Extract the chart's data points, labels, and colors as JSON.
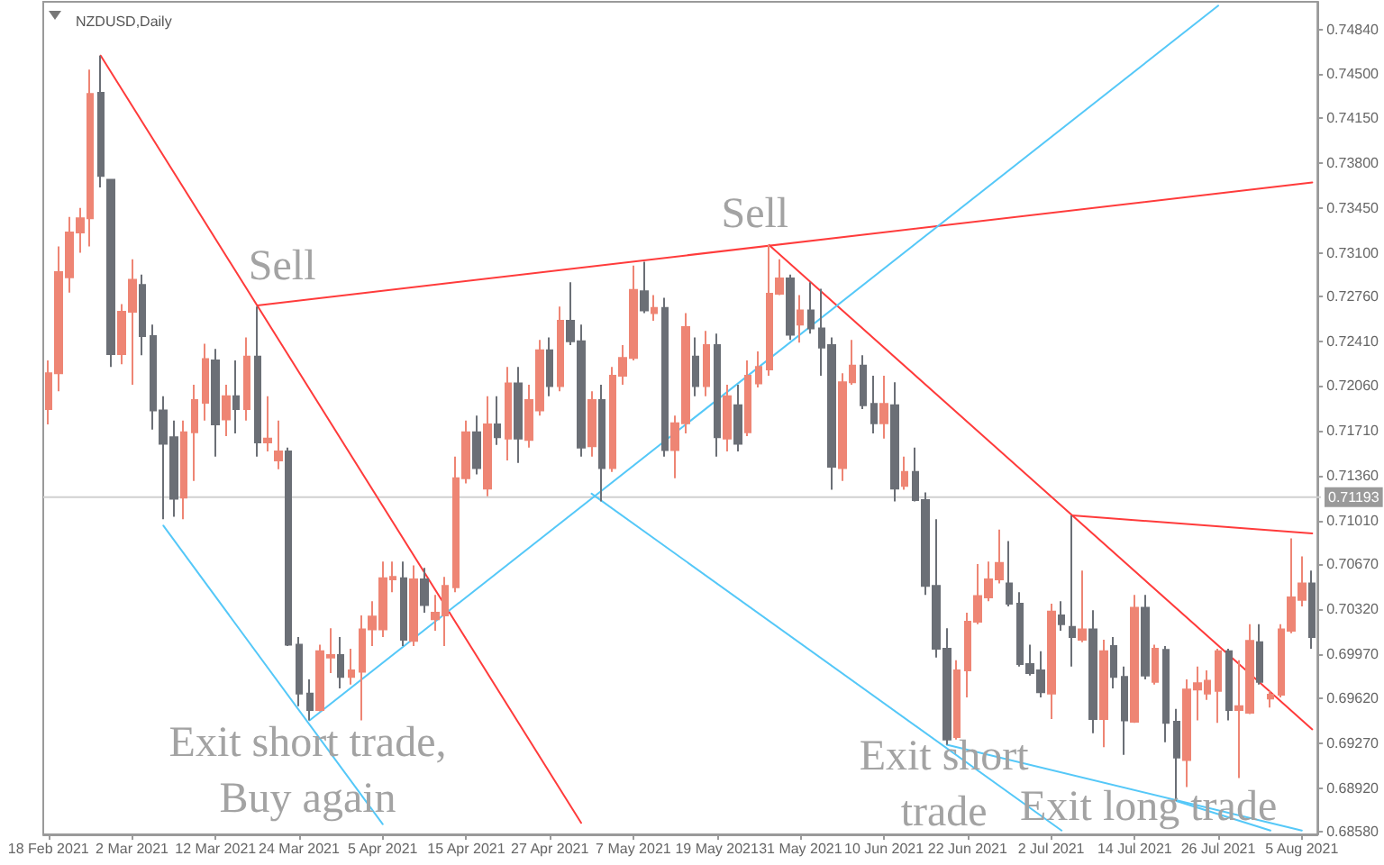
{
  "chart_data": {
    "type": "candlestick",
    "title": "NZDUSD,Daily",
    "categories": [
      "18 Feb 2021",
      null,
      null,
      null,
      null,
      null,
      null,
      null,
      "2 Mar 2021",
      null,
      null,
      null,
      null,
      null,
      null,
      null,
      "12 Mar 2021",
      null,
      null,
      null,
      null,
      null,
      null,
      null,
      "24 Mar 2021",
      null,
      null,
      null,
      null,
      null,
      null,
      null,
      "5 Apr 2021",
      null,
      null,
      null,
      null,
      null,
      null,
      null,
      "15 Apr 2021",
      null,
      null,
      null,
      null,
      null,
      null,
      null,
      "27 Apr 2021",
      null,
      null,
      null,
      null,
      null,
      null,
      null,
      "7 May 2021",
      null,
      null,
      null,
      null,
      null,
      null,
      null,
      "19 May 2021",
      null,
      null,
      null,
      null,
      null,
      null,
      null,
      "31 May 2021",
      null,
      null,
      null,
      null,
      null,
      null,
      null,
      "10 Jun 2021",
      null,
      null,
      null,
      null,
      null,
      null,
      null,
      "22 Jun 2021",
      null,
      null,
      null,
      null,
      null,
      null,
      null,
      "2 Jul 2021",
      null,
      null,
      null,
      null,
      null,
      null,
      null,
      "14 Jul 2021",
      null,
      null,
      null,
      null,
      null,
      null,
      null,
      "26 Jul 2021",
      null,
      null,
      null,
      null,
      null,
      null,
      null,
      "5 Aug 2021",
      null
    ],
    "ylim": [
      0.6856,
      0.7506
    ],
    "yticks": [
      {
        "value": 0.7484,
        "label": "0.74840"
      },
      {
        "value": 0.745,
        "label": "0.74500"
      },
      {
        "value": 0.7415,
        "label": "0.74150"
      },
      {
        "value": 0.738,
        "label": "0.73800"
      },
      {
        "value": 0.7345,
        "label": "0.73450"
      },
      {
        "value": 0.731,
        "label": "0.73100"
      },
      {
        "value": 0.7276,
        "label": "0.72760"
      },
      {
        "value": 0.7241,
        "label": "0.72410"
      },
      {
        "value": 0.7206,
        "label": "0.72060"
      },
      {
        "value": 0.7171,
        "label": "0.71710"
      },
      {
        "value": 0.7136,
        "label": "0.71360"
      },
      {
        "value": 0.7101,
        "label": "0.71010"
      },
      {
        "value": 0.7067,
        "label": "0.70670"
      },
      {
        "value": 0.7032,
        "label": "0.70320"
      },
      {
        "value": 0.6997,
        "label": "0.69970"
      },
      {
        "value": 0.6962,
        "label": "0.69620"
      },
      {
        "value": 0.6927,
        "label": "0.69270"
      },
      {
        "value": 0.6892,
        "label": "0.68920"
      },
      {
        "value": 0.6858,
        "label": "0.68580"
      }
    ],
    "marker": "none",
    "ref_lines": [
      {
        "axis": "y",
        "value": 0.71193,
        "label": "0.71193",
        "color": "#d0d0d0"
      }
    ],
    "annotations": [
      "Sell",
      "Sell",
      "Exit short trade,\nBuy again",
      "Exit short\ntrade",
      "Exit long trade"
    ],
    "series": [
      {
        "ohlc": [
          [
            0.7188,
            0.7226,
            0.7176,
            0.7216
          ],
          [
            0.7216,
            0.7315,
            0.7202,
            0.7295
          ],
          [
            0.7291,
            0.7338,
            0.7279,
            0.7326
          ],
          [
            0.7326,
            0.7345,
            0.731,
            0.7337
          ],
          [
            0.7337,
            0.7453,
            0.7315,
            0.7434
          ],
          [
            0.7435,
            0.7464,
            0.7361,
            0.737
          ],
          [
            0.7367,
            0.7367,
            0.7221,
            0.7231
          ],
          [
            0.7231,
            0.727,
            0.7223,
            0.7264
          ],
          [
            0.7264,
            0.7305,
            0.7207,
            0.7289
          ],
          [
            0.7285,
            0.7293,
            0.723,
            0.7245
          ],
          [
            0.7245,
            0.7254,
            0.7172,
            0.7187
          ],
          [
            0.7187,
            0.7198,
            0.7102,
            0.7161
          ],
          [
            0.7166,
            0.7179,
            0.7104,
            0.7118
          ],
          [
            0.7119,
            0.7179,
            0.7102,
            0.717
          ],
          [
            0.717,
            0.7207,
            0.7132,
            0.7195
          ],
          [
            0.7193,
            0.7239,
            0.7179,
            0.7227
          ],
          [
            0.7226,
            0.7235,
            0.7151,
            0.7176
          ],
          [
            0.718,
            0.7207,
            0.7167,
            0.7198
          ],
          [
            0.7198,
            0.7226,
            0.7169,
            0.7188
          ],
          [
            0.7188,
            0.7244,
            0.7179,
            0.7229
          ],
          [
            0.7229,
            0.7268,
            0.7151,
            0.7162
          ],
          [
            0.7162,
            0.7198,
            0.7155,
            0.7165
          ],
          [
            0.7148,
            0.7179,
            0.7141,
            0.7155
          ],
          [
            0.7155,
            0.7158,
            0.7003,
            0.7004
          ],
          [
            0.7004,
            0.701,
            0.6956,
            0.6966
          ],
          [
            0.6966,
            0.6977,
            0.6945,
            0.6953
          ],
          [
            0.6953,
            0.7004,
            0.6952,
            0.6999
          ],
          [
            0.6994,
            0.7017,
            0.6982,
            0.6996
          ],
          [
            0.6996,
            0.701,
            0.697,
            0.6979
          ],
          [
            0.6979,
            0.7001,
            0.6973,
            0.6984
          ],
          [
            0.6983,
            0.7027,
            0.6945,
            0.7016
          ],
          [
            0.7016,
            0.7038,
            0.7003,
            0.7026
          ],
          [
            0.7016,
            0.7069,
            0.701,
            0.7056
          ],
          [
            0.7055,
            0.7069,
            0.7045,
            0.7057
          ],
          [
            0.7056,
            0.7069,
            0.7003,
            0.7008
          ],
          [
            0.7007,
            0.7066,
            0.7003,
            0.7055
          ],
          [
            0.7055,
            0.7064,
            0.7029,
            0.7035
          ],
          [
            0.7024,
            0.7043,
            0.7015,
            0.7029
          ],
          [
            0.7027,
            0.7057,
            0.7003,
            0.705
          ],
          [
            0.7049,
            0.7151,
            0.7045,
            0.7134
          ],
          [
            0.7134,
            0.7179,
            0.713,
            0.717
          ],
          [
            0.717,
            0.7183,
            0.7137,
            0.7142
          ],
          [
            0.7126,
            0.7198,
            0.712,
            0.7176
          ],
          [
            0.7176,
            0.7198,
            0.716,
            0.7166
          ],
          [
            0.7165,
            0.7221,
            0.7148,
            0.7208
          ],
          [
            0.7208,
            0.7221,
            0.7146,
            0.7165
          ],
          [
            0.7164,
            0.7207,
            0.7158,
            0.7195
          ],
          [
            0.7187,
            0.7242,
            0.7183,
            0.7234
          ],
          [
            0.7234,
            0.7244,
            0.7198,
            0.7206
          ],
          [
            0.7206,
            0.7268,
            0.7202,
            0.7257
          ],
          [
            0.7257,
            0.7287,
            0.7238,
            0.7241
          ],
          [
            0.7241,
            0.7254,
            0.7151,
            0.7158
          ],
          [
            0.7159,
            0.7202,
            0.7151,
            0.7195
          ],
          [
            0.7195,
            0.7207,
            0.7116,
            0.7142
          ],
          [
            0.7142,
            0.7221,
            0.7139,
            0.7214
          ],
          [
            0.7214,
            0.7238,
            0.7207,
            0.7228
          ],
          [
            0.7228,
            0.73,
            0.7226,
            0.7281
          ],
          [
            0.728,
            0.7303,
            0.7263,
            0.7265
          ],
          [
            0.7263,
            0.7277,
            0.7257,
            0.7267
          ],
          [
            0.7267,
            0.7275,
            0.7151,
            0.7156
          ],
          [
            0.7156,
            0.7183,
            0.7134,
            0.7177
          ],
          [
            0.7177,
            0.7263,
            0.7169,
            0.7252
          ],
          [
            0.7229,
            0.7244,
            0.7198,
            0.7206
          ],
          [
            0.7206,
            0.7249,
            0.7198,
            0.7238
          ],
          [
            0.7238,
            0.7247,
            0.7151,
            0.7166
          ],
          [
            0.7165,
            0.7207,
            0.7155,
            0.7198
          ],
          [
            0.7191,
            0.7207,
            0.7155,
            0.7161
          ],
          [
            0.717,
            0.7226,
            0.7167,
            0.7214
          ],
          [
            0.7208,
            0.7233,
            0.7205,
            0.7221
          ],
          [
            0.7219,
            0.7316,
            0.7214,
            0.7278
          ],
          [
            0.7278,
            0.7305,
            0.7277,
            0.729
          ],
          [
            0.729,
            0.7293,
            0.7242,
            0.7246
          ],
          [
            0.7254,
            0.7277,
            0.724,
            0.7265
          ],
          [
            0.7265,
            0.7287,
            0.7247,
            0.7251
          ],
          [
            0.7251,
            0.7282,
            0.7214,
            0.7236
          ],
          [
            0.7238,
            0.7244,
            0.7125,
            0.7143
          ],
          [
            0.7142,
            0.7216,
            0.7132,
            0.7209
          ],
          [
            0.7209,
            0.7242,
            0.7207,
            0.7222
          ],
          [
            0.7222,
            0.723,
            0.7188,
            0.7191
          ],
          [
            0.7192,
            0.7214,
            0.7169,
            0.7177
          ],
          [
            0.7177,
            0.7214,
            0.7165,
            0.7192
          ],
          [
            0.7191,
            0.7209,
            0.7116,
            0.7126
          ],
          [
            0.7128,
            0.7151,
            0.7125,
            0.7139
          ],
          [
            0.7139,
            0.7158,
            0.7116,
            0.7117
          ],
          [
            0.7117,
            0.7123,
            0.7043,
            0.705
          ],
          [
            0.705,
            0.7102,
            0.6994,
            0.7001
          ],
          [
            0.7001,
            0.7017,
            0.6926,
            0.693
          ],
          [
            0.6932,
            0.6992,
            0.693,
            0.6984
          ],
          [
            0.6984,
            0.7029,
            0.6963,
            0.7022
          ],
          [
            0.7022,
            0.7067,
            0.702,
            0.7042
          ],
          [
            0.7041,
            0.7069,
            0.7038,
            0.7055
          ],
          [
            0.7055,
            0.7094,
            0.7052,
            0.7068
          ],
          [
            0.7052,
            0.7085,
            0.7034,
            0.7036
          ],
          [
            0.7036,
            0.7045,
            0.6987,
            0.6989
          ],
          [
            0.6989,
            0.7004,
            0.698,
            0.6982
          ],
          [
            0.6984,
            0.6999,
            0.6963,
            0.6967
          ],
          [
            0.6966,
            0.7036,
            0.6946,
            0.703
          ],
          [
            0.7027,
            0.7038,
            0.7015,
            0.702
          ],
          [
            0.7018,
            0.7105,
            0.6987,
            0.701
          ],
          [
            0.7008,
            0.7062,
            0.7006,
            0.7016
          ],
          [
            0.7016,
            0.7031,
            0.6935,
            0.6946
          ],
          [
            0.6946,
            0.7008,
            0.6924,
            0.6999
          ],
          [
            0.7003,
            0.701,
            0.697,
            0.6979
          ],
          [
            0.6979,
            0.6987,
            0.6918,
            0.6945
          ],
          [
            0.6944,
            0.7043,
            0.6943,
            0.7033
          ],
          [
            0.7033,
            0.7043,
            0.6977,
            0.698
          ],
          [
            0.6975,
            0.7004,
            0.6973,
            0.7001
          ],
          [
            0.7,
            0.7003,
            0.6928,
            0.6943
          ],
          [
            0.6944,
            0.6954,
            0.6882,
            0.6916
          ],
          [
            0.6914,
            0.6977,
            0.6893,
            0.6969
          ],
          [
            0.6969,
            0.6987,
            0.6945,
            0.6974
          ],
          [
            0.6966,
            0.6984,
            0.6961,
            0.6976
          ],
          [
            0.6968,
            0.7001,
            0.6943,
            0.6999
          ],
          [
            0.6999,
            0.7001,
            0.6945,
            0.6953
          ],
          [
            0.6953,
            0.6992,
            0.69,
            0.6956
          ],
          [
            0.6951,
            0.702,
            0.695,
            0.7007
          ],
          [
            0.7006,
            0.702,
            0.6973,
            0.6975
          ],
          [
            0.6962,
            0.6968,
            0.6955,
            0.6965
          ],
          [
            0.6965,
            0.702,
            0.6963,
            0.7016
          ],
          [
            0.7015,
            0.7087,
            0.7013,
            0.7041
          ],
          [
            0.7039,
            0.7073,
            0.7034,
            0.7052
          ],
          [
            0.7052,
            0.7062,
            0.7001,
            0.701
          ]
        ],
        "colors": [
          "#ee8574",
          "#ee8574",
          "#ee8574",
          "#ee8574",
          "#ee8574",
          "#6b6f76",
          "#6b6f76",
          "#ee8574",
          "#ee8574",
          "#6b6f76",
          "#6b6f76",
          "#6b6f76",
          "#6b6f76",
          "#ee8574",
          "#ee8574",
          "#ee8574",
          "#6b6f76",
          "#ee8574",
          "#6b6f76",
          "#ee8574",
          "#6b6f76",
          "#ee8574",
          "#ee8574",
          "#6b6f76",
          "#6b6f76",
          "#6b6f76",
          "#ee8574",
          "#ee8574",
          "#6b6f76",
          "#ee8574",
          "#ee8574",
          "#ee8574",
          "#ee8574",
          "#ee8574",
          "#6b6f76",
          "#ee8574",
          "#6b6f76",
          "#ee8574",
          "#ee8574",
          "#ee8574",
          "#ee8574",
          "#6b6f76",
          "#ee8574",
          "#6b6f76",
          "#ee8574",
          "#6b6f76",
          "#ee8574",
          "#ee8574",
          "#6b6f76",
          "#ee8574",
          "#6b6f76",
          "#6b6f76",
          "#ee8574",
          "#6b6f76",
          "#ee8574",
          "#ee8574",
          "#ee8574",
          "#6b6f76",
          "#ee8574",
          "#6b6f76",
          "#ee8574",
          "#ee8574",
          "#6b6f76",
          "#ee8574",
          "#6b6f76",
          "#ee8574",
          "#6b6f76",
          "#ee8574",
          "#ee8574",
          "#ee8574",
          "#ee8574",
          "#6b6f76",
          "#ee8574",
          "#6b6f76",
          "#6b6f76",
          "#6b6f76",
          "#ee8574",
          "#ee8574",
          "#6b6f76",
          "#6b6f76",
          "#ee8574",
          "#6b6f76",
          "#ee8574",
          "#6b6f76",
          "#6b6f76",
          "#6b6f76",
          "#6b6f76",
          "#ee8574",
          "#ee8574",
          "#ee8574",
          "#ee8574",
          "#ee8574",
          "#6b6f76",
          "#6b6f76",
          "#6b6f76",
          "#6b6f76",
          "#ee8574",
          "#6b6f76",
          "#6b6f76",
          "#ee8574",
          "#6b6f76",
          "#ee8574",
          "#6b6f76",
          "#6b6f76",
          "#ee8574",
          "#6b6f76",
          "#ee8574",
          "#6b6f76",
          "#6b6f76",
          "#ee8574",
          "#ee8574",
          "#ee8574",
          "#ee8574",
          "#6b6f76",
          "#ee8574",
          "#ee8574",
          "#6b6f76",
          "#ee8574",
          "#ee8574",
          "#ee8574",
          "#ee8574",
          "#6b6f76"
        ]
      },
      {
        "type": "line",
        "color": "#ff3b3b",
        "values": [
          null,
          null,
          null,
          null,
          null,
          0.7464,
          null,
          null,
          null,
          null,
          null,
          null,
          null,
          null,
          null,
          null,
          null,
          null,
          null,
          null,
          null,
          null,
          null,
          null,
          null,
          null,
          null,
          null,
          null,
          null,
          null,
          null,
          null,
          null,
          null,
          null,
          null,
          null,
          null,
          null,
          null,
          null,
          null,
          null,
          null,
          null,
          null,
          null,
          null,
          null,
          null,
          0.6865,
          null,
          null,
          null,
          null,
          null,
          null,
          null,
          null,
          null,
          null,
          null,
          null,
          null,
          null,
          null,
          null,
          null,
          null,
          null,
          null,
          null,
          null,
          null,
          null,
          null,
          null,
          null,
          null,
          null,
          null,
          null,
          null,
          null,
          null,
          null,
          null,
          null,
          null,
          null,
          null,
          null,
          null,
          null,
          null,
          null,
          null,
          null,
          null,
          null,
          null,
          null,
          null,
          null,
          null,
          null,
          null,
          null,
          null,
          null,
          null,
          null,
          null,
          null,
          null,
          null,
          null,
          null,
          null,
          null,
          null
        ]
      },
      {
        "type": "line",
        "color": "#ff3b3b",
        "values": [
          null,
          null,
          null,
          null,
          null,
          null,
          null,
          null,
          null,
          null,
          null,
          null,
          null,
          null,
          null,
          null,
          null,
          null,
          null,
          null,
          0.7269,
          null,
          null,
          null,
          null,
          null,
          null,
          null,
          null,
          null,
          null,
          null,
          null,
          null,
          null,
          null,
          null,
          null,
          null,
          null,
          null,
          null,
          null,
          null,
          null,
          null,
          null,
          null,
          null,
          null,
          null,
          null,
          null,
          null,
          null,
          null,
          null,
          null,
          null,
          null,
          null,
          null,
          null,
          null,
          null,
          null,
          null,
          null,
          null,
          null,
          null,
          null,
          null,
          null,
          null,
          null,
          null,
          null,
          null,
          null,
          null,
          null,
          null,
          null,
          null,
          null,
          null,
          null,
          null,
          null,
          null,
          null,
          null,
          null,
          null,
          null,
          null,
          null,
          null,
          null,
          null,
          null,
          null,
          null,
          null,
          null,
          null,
          null,
          null,
          null,
          null,
          null,
          null,
          null,
          null,
          null,
          null,
          null,
          null,
          null,
          null,
          0.7365
        ]
      },
      {
        "type": "line",
        "color": "#ff3b3b",
        "values": [
          null,
          null,
          null,
          null,
          null,
          null,
          null,
          null,
          null,
          null,
          null,
          null,
          null,
          null,
          null,
          null,
          null,
          null,
          null,
          null,
          null,
          null,
          null,
          null,
          null,
          null,
          null,
          null,
          null,
          null,
          null,
          null,
          null,
          null,
          null,
          null,
          null,
          null,
          null,
          null,
          null,
          null,
          null,
          null,
          null,
          null,
          null,
          null,
          null,
          null,
          null,
          null,
          null,
          null,
          null,
          null,
          null,
          null,
          null,
          null,
          null,
          null,
          null,
          null,
          null,
          null,
          null,
          null,
          null,
          0.7316,
          null,
          null,
          null,
          null,
          null,
          null,
          null,
          null,
          null,
          null,
          null,
          null,
          null,
          null,
          null,
          null,
          null,
          null,
          null,
          null,
          null,
          null,
          null,
          null,
          null,
          null,
          null,
          null,
          null,
          null,
          null,
          null,
          null,
          null,
          null,
          null,
          null,
          null,
          null,
          null,
          null,
          null,
          null,
          null,
          null,
          null,
          null,
          null,
          null,
          null,
          null,
          0.6938
        ]
      },
      {
        "type": "line",
        "color": "#ff3b3b",
        "values": [
          null,
          null,
          null,
          null,
          null,
          null,
          null,
          null,
          null,
          null,
          null,
          null,
          null,
          null,
          null,
          null,
          null,
          null,
          null,
          null,
          null,
          null,
          null,
          null,
          null,
          null,
          null,
          null,
          null,
          null,
          null,
          null,
          null,
          null,
          null,
          null,
          null,
          null,
          null,
          null,
          null,
          null,
          null,
          null,
          null,
          null,
          null,
          null,
          null,
          null,
          null,
          null,
          null,
          null,
          null,
          null,
          null,
          null,
          null,
          null,
          null,
          null,
          null,
          null,
          null,
          null,
          null,
          null,
          null,
          null,
          null,
          null,
          null,
          null,
          null,
          null,
          null,
          null,
          null,
          null,
          null,
          null,
          null,
          null,
          null,
          null,
          null,
          null,
          null,
          null,
          null,
          null,
          null,
          null,
          null,
          null,
          null,
          null,
          0.7105,
          null,
          null,
          null,
          null,
          null,
          null,
          null,
          null,
          null,
          null,
          null,
          null,
          null,
          null,
          null,
          null,
          null,
          null,
          null,
          null,
          null,
          null,
          0.7091
        ]
      },
      {
        "type": "line",
        "color": "#55c8f8",
        "values": [
          null,
          null,
          null,
          null,
          null,
          null,
          null,
          null,
          null,
          null,
          null,
          0.7097,
          null,
          null,
          null,
          null,
          null,
          null,
          null,
          null,
          null,
          null,
          null,
          null,
          null,
          null,
          null,
          null,
          null,
          null,
          null,
          null,
          0.6864,
          null,
          null,
          null,
          null,
          null,
          null,
          null,
          null,
          null,
          null,
          null,
          null,
          null,
          null,
          null,
          null,
          null,
          null,
          null,
          null,
          null,
          null,
          null,
          null,
          null,
          null,
          null,
          null,
          null,
          null,
          null,
          null,
          null,
          null,
          null,
          null,
          null,
          null,
          null,
          null,
          null,
          null,
          null,
          null,
          null,
          null,
          null,
          null,
          null,
          null,
          null,
          null,
          null,
          null,
          null,
          null,
          null,
          null,
          null,
          null,
          null,
          null,
          null,
          null,
          null,
          null,
          null,
          null,
          null,
          null,
          null,
          null,
          null,
          null,
          null,
          null,
          null,
          null,
          null,
          null,
          null,
          null,
          null,
          null,
          null,
          null,
          null,
          null,
          null
        ]
      },
      {
        "type": "line",
        "color": "#55c8f8",
        "values": [
          null,
          null,
          null,
          null,
          null,
          null,
          null,
          null,
          null,
          null,
          null,
          null,
          null,
          null,
          null,
          null,
          null,
          null,
          null,
          null,
          null,
          null,
          null,
          null,
          null,
          0.6945,
          null,
          null,
          null,
          null,
          null,
          null,
          null,
          null,
          null,
          null,
          null,
          null,
          null,
          null,
          null,
          null,
          null,
          null,
          null,
          null,
          null,
          null,
          null,
          null,
          null,
          null,
          null,
          null,
          null,
          null,
          null,
          null,
          null,
          null,
          null,
          null,
          null,
          null,
          null,
          null,
          null,
          null,
          null,
          null,
          null,
          null,
          null,
          null,
          null,
          null,
          null,
          null,
          null,
          null,
          null,
          null,
          null,
          null,
          null,
          null,
          null,
          null,
          null,
          null,
          null,
          null,
          null,
          null,
          null,
          null,
          null,
          null,
          null,
          null,
          null,
          null,
          null,
          null,
          null,
          null,
          null,
          null,
          null,
          null,
          null,
          null,
          0.7503,
          null,
          null,
          null,
          null,
          null,
          null,
          null,
          null,
          null
        ]
      },
      {
        "type": "line",
        "color": "#55c8f8",
        "values": [
          null,
          null,
          null,
          null,
          null,
          null,
          null,
          null,
          null,
          null,
          null,
          null,
          null,
          null,
          null,
          null,
          null,
          null,
          null,
          null,
          null,
          null,
          null,
          null,
          null,
          null,
          null,
          null,
          null,
          null,
          null,
          null,
          null,
          null,
          null,
          null,
          null,
          null,
          null,
          null,
          null,
          null,
          null,
          null,
          null,
          null,
          null,
          null,
          null,
          null,
          null,
          null,
          0.7122,
          null,
          null,
          null,
          null,
          null,
          null,
          null,
          null,
          null,
          null,
          null,
          null,
          null,
          null,
          null,
          null,
          null,
          null,
          null,
          null,
          null,
          null,
          null,
          null,
          null,
          null,
          null,
          null,
          null,
          null,
          null,
          null,
          null,
          null,
          null,
          null,
          null,
          null,
          null,
          null,
          null,
          null,
          null,
          null,
          0.6859,
          null,
          null,
          null,
          null,
          null,
          null,
          null,
          null,
          null,
          null,
          null,
          null,
          null,
          null,
          null,
          null,
          null,
          null,
          null,
          null,
          null,
          null,
          null,
          null
        ]
      },
      {
        "type": "line",
        "color": "#55c8f8",
        "values": [
          null,
          null,
          null,
          null,
          null,
          null,
          null,
          null,
          null,
          null,
          null,
          null,
          null,
          null,
          null,
          null,
          null,
          null,
          null,
          null,
          null,
          null,
          null,
          null,
          null,
          null,
          null,
          null,
          null,
          null,
          null,
          null,
          null,
          null,
          null,
          null,
          null,
          null,
          null,
          null,
          null,
          null,
          null,
          null,
          null,
          null,
          null,
          null,
          null,
          null,
          null,
          null,
          null,
          null,
          null,
          null,
          null,
          null,
          null,
          null,
          null,
          null,
          null,
          null,
          null,
          null,
          null,
          null,
          null,
          null,
          null,
          null,
          null,
          null,
          null,
          null,
          null,
          null,
          null,
          null,
          null,
          null,
          null,
          null,
          null,
          null,
          0.6926,
          null,
          null,
          null,
          null,
          null,
          null,
          null,
          null,
          null,
          null,
          null,
          null,
          null,
          null,
          null,
          null,
          null,
          null,
          null,
          null,
          null,
          null,
          null,
          null,
          null,
          null,
          null,
          null,
          null,
          null,
          null,
          null,
          null,
          0.6859,
          null
        ]
      },
      {
        "type": "line",
        "color": "#55c8f8",
        "values": [
          null,
          null,
          null,
          null,
          null,
          null,
          null,
          null,
          null,
          null,
          null,
          null,
          null,
          null,
          null,
          null,
          null,
          null,
          null,
          null,
          null,
          null,
          null,
          null,
          null,
          null,
          null,
          null,
          null,
          null,
          null,
          null,
          null,
          null,
          null,
          null,
          null,
          null,
          null,
          null,
          null,
          null,
          null,
          null,
          null,
          null,
          null,
          null,
          null,
          null,
          null,
          null,
          null,
          null,
          null,
          null,
          null,
          null,
          null,
          null,
          null,
          null,
          null,
          null,
          null,
          null,
          null,
          null,
          null,
          null,
          null,
          null,
          null,
          null,
          null,
          null,
          null,
          null,
          null,
          null,
          null,
          null,
          null,
          null,
          null,
          null,
          null,
          null,
          null,
          null,
          null,
          null,
          null,
          null,
          null,
          null,
          null,
          null,
          null,
          null,
          null,
          null,
          null,
          null,
          null,
          null,
          null,
          null,
          0.6882,
          null,
          null,
          null,
          null,
          null,
          null,
          null,
          null,
          0.6859,
          null,
          null,
          null,
          null
        ]
      }
    ]
  }
}
